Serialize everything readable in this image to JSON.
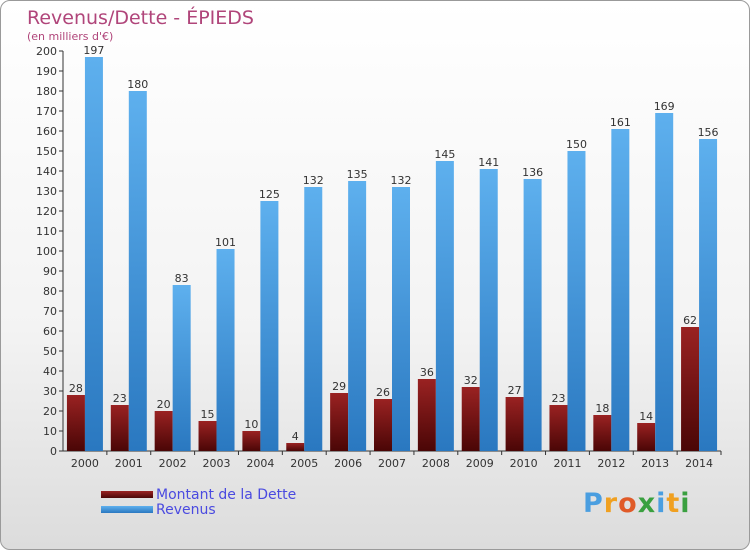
{
  "chart_data": {
    "type": "bar",
    "title": "Revenus/Dette - ÉPIEDS",
    "subtitle": "(en milliers d'€)",
    "categories": [
      "2000",
      "2001",
      "2002",
      "2003",
      "2004",
      "2005",
      "2006",
      "2007",
      "2008",
      "2009",
      "2010",
      "2011",
      "2012",
      "2013",
      "2014"
    ],
    "series": [
      {
        "name": "Montant de la Dette",
        "color": "#7a1010",
        "values": [
          28,
          23,
          20,
          15,
          10,
          4,
          29,
          26,
          36,
          32,
          27,
          23,
          18,
          14,
          62
        ]
      },
      {
        "name": "Revenus",
        "color": "#4a9ee0",
        "values": [
          197,
          180,
          83,
          101,
          125,
          132,
          135,
          132,
          145,
          141,
          136,
          150,
          161,
          169,
          156
        ]
      }
    ],
    "ylim": [
      0,
      200
    ],
    "ytick_step": 10,
    "grid": false,
    "legend_position": "bottom-left"
  },
  "logo": {
    "text": "Proxiti",
    "letters": [
      {
        "ch": "P",
        "color": "#4a9ee0"
      },
      {
        "ch": "r",
        "color": "#f0a020"
      },
      {
        "ch": "o",
        "color": "#e05a28"
      },
      {
        "ch": "x",
        "color": "#3aa040"
      },
      {
        "ch": "i",
        "color": "#4a9ee0"
      },
      {
        "ch": "t",
        "color": "#f0a020"
      },
      {
        "ch": "i",
        "color": "#3aa040"
      }
    ]
  }
}
